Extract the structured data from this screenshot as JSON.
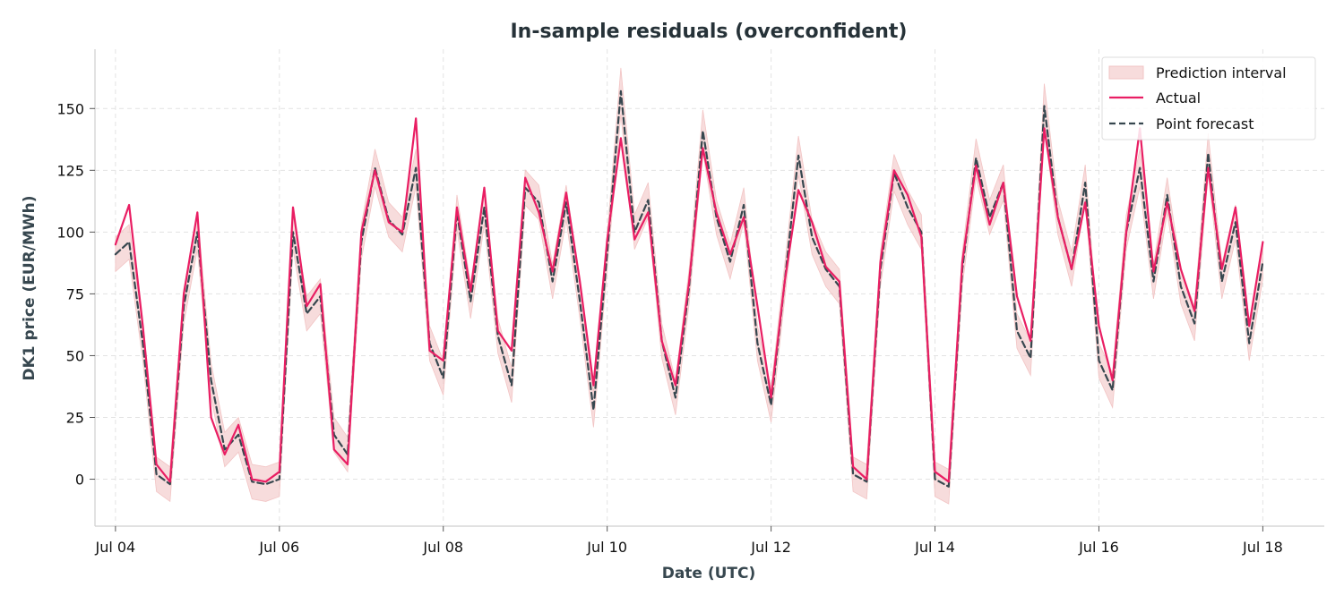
{
  "chart_data": {
    "type": "line",
    "title": "In-sample residuals (overconfident)",
    "xlabel": "Date (UTC)",
    "ylabel": "DK1 price (EUR/MWh)",
    "x_ticks": [
      "Jul 04",
      "Jul 06",
      "Jul 08",
      "Jul 10",
      "Jul 12",
      "Jul 14",
      "Jul 16",
      "Jul 18"
    ],
    "y_ticks": [
      0,
      25,
      50,
      75,
      100,
      125,
      150
    ],
    "xlim": [
      "2025-07-03T18:00",
      "2025-07-18T18:00"
    ],
    "ylim": [
      -19,
      174
    ],
    "grid": true,
    "legend_position": "top-right",
    "x": [
      "2025-07-04T00:00",
      "2025-07-04T04:00",
      "2025-07-04T08:00",
      "2025-07-04T12:00",
      "2025-07-04T16:00",
      "2025-07-04T20:00",
      "2025-07-05T00:00",
      "2025-07-05T04:00",
      "2025-07-05T08:00",
      "2025-07-05T12:00",
      "2025-07-05T16:00",
      "2025-07-05T20:00",
      "2025-07-06T00:00",
      "2025-07-06T04:00",
      "2025-07-06T08:00",
      "2025-07-06T12:00",
      "2025-07-06T16:00",
      "2025-07-06T20:00",
      "2025-07-07T00:00",
      "2025-07-07T04:00",
      "2025-07-07T08:00",
      "2025-07-07T12:00",
      "2025-07-07T16:00",
      "2025-07-07T20:00",
      "2025-07-08T00:00",
      "2025-07-08T04:00",
      "2025-07-08T08:00",
      "2025-07-08T12:00",
      "2025-07-08T16:00",
      "2025-07-08T20:00",
      "2025-07-09T00:00",
      "2025-07-09T04:00",
      "2025-07-09T08:00",
      "2025-07-09T12:00",
      "2025-07-09T16:00",
      "2025-07-09T20:00",
      "2025-07-10T00:00",
      "2025-07-10T04:00",
      "2025-07-10T08:00",
      "2025-07-10T12:00",
      "2025-07-10T16:00",
      "2025-07-10T20:00",
      "2025-07-11T00:00",
      "2025-07-11T04:00",
      "2025-07-11T08:00",
      "2025-07-11T12:00",
      "2025-07-11T16:00",
      "2025-07-11T20:00",
      "2025-07-12T00:00",
      "2025-07-12T04:00",
      "2025-07-12T08:00",
      "2025-07-12T12:00",
      "2025-07-12T16:00",
      "2025-07-12T20:00",
      "2025-07-13T00:00",
      "2025-07-13T04:00",
      "2025-07-13T08:00",
      "2025-07-13T12:00",
      "2025-07-13T16:00",
      "2025-07-13T20:00",
      "2025-07-14T00:00",
      "2025-07-14T04:00",
      "2025-07-14T08:00",
      "2025-07-14T12:00",
      "2025-07-14T16:00",
      "2025-07-14T20:00",
      "2025-07-15T00:00",
      "2025-07-15T04:00",
      "2025-07-15T08:00",
      "2025-07-15T12:00",
      "2025-07-15T16:00",
      "2025-07-15T20:00",
      "2025-07-16T00:00",
      "2025-07-16T04:00",
      "2025-07-16T08:00",
      "2025-07-16T12:00",
      "2025-07-16T16:00",
      "2025-07-16T20:00",
      "2025-07-17T00:00",
      "2025-07-17T04:00",
      "2025-07-17T08:00",
      "2025-07-17T12:00",
      "2025-07-17T16:00",
      "2025-07-17T20:00",
      "2025-07-18T00:00"
    ],
    "series": [
      {
        "name": "Actual",
        "color": "#e91e63",
        "dash": "solid",
        "values": [
          95,
          111,
          62,
          6,
          -1,
          75,
          108,
          25,
          10,
          22,
          0,
          -1,
          3,
          110,
          70,
          79,
          12,
          6,
          100,
          125,
          104,
          100,
          146,
          52,
          48,
          110,
          76,
          118,
          60,
          52,
          122,
          108,
          84,
          116,
          80,
          38,
          97,
          138,
          97,
          108,
          56,
          38,
          80,
          134,
          108,
          91,
          106,
          70,
          33,
          80,
          117,
          104,
          86,
          80,
          5,
          0,
          88,
          125,
          115,
          98,
          3,
          -1,
          88,
          127,
          103,
          120,
          74,
          56,
          142,
          106,
          85,
          112,
          62,
          40,
          100,
          142,
          84,
          112,
          85,
          68,
          126,
          85,
          110,
          62,
          96
        ]
      },
      {
        "name": "Point forecast",
        "color": "#37474f",
        "dash": "dashed",
        "values": [
          91,
          96,
          55,
          2,
          -2,
          70,
          100,
          40,
          12,
          18,
          -1,
          -2,
          0,
          100,
          67,
          74,
          18,
          10,
          96,
          126,
          105,
          99,
          126,
          55,
          41,
          108,
          72,
          110,
          58,
          38,
          118,
          112,
          80,
          112,
          72,
          28,
          92,
          157,
          100,
          113,
          56,
          33,
          78,
          141,
          106,
          88,
          111,
          55,
          30,
          80,
          131,
          98,
          85,
          78,
          2,
          -1,
          85,
          124,
          110,
          100,
          0,
          -3,
          85,
          130,
          106,
          120,
          60,
          49,
          151,
          106,
          85,
          120,
          48,
          36,
          100,
          126,
          80,
          115,
          78,
          63,
          132,
          80,
          104,
          55,
          88
        ]
      }
    ],
    "interval": {
      "name": "Prediction interval",
      "color": "#f2c4c4",
      "band_halfwidth": 7,
      "band_halfwidth_fraction": 0.06
    }
  }
}
